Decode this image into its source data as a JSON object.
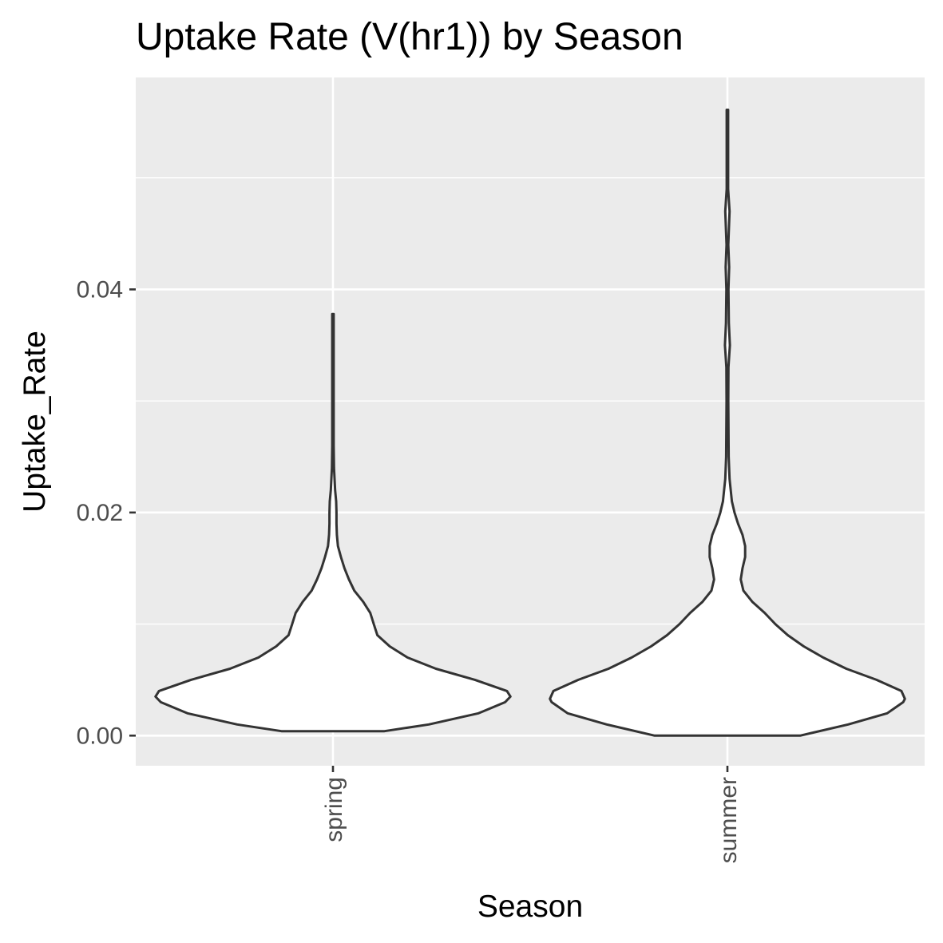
{
  "chart_data": {
    "type": "violin",
    "title": "Uptake Rate (V(hr1)) by Season",
    "xlabel": "Season",
    "ylabel": "Uptake_Rate",
    "categories": [
      "spring",
      "summer"
    ],
    "ylim": [
      -0.0027,
      0.059
    ],
    "y_ticks": [
      0.0,
      0.02,
      0.04
    ],
    "y_tick_labels": [
      "0.00",
      "0.02",
      "0.04"
    ],
    "grid": true,
    "colors": {
      "panel": "#ebebeb",
      "grid": "#ffffff",
      "outline": "#333333",
      "fill": "#ffffff"
    },
    "series": [
      {
        "category": "spring",
        "min": 0.0004,
        "max": 0.0378,
        "profile": [
          [
            0.0004,
            0.29
          ],
          [
            0.001,
            0.54
          ],
          [
            0.002,
            0.82
          ],
          [
            0.003,
            0.97
          ],
          [
            0.0035,
            1.0
          ],
          [
            0.004,
            0.98
          ],
          [
            0.005,
            0.8
          ],
          [
            0.006,
            0.58
          ],
          [
            0.007,
            0.42
          ],
          [
            0.008,
            0.32
          ],
          [
            0.009,
            0.25
          ],
          [
            0.01,
            0.23
          ],
          [
            0.011,
            0.21
          ],
          [
            0.012,
            0.17
          ],
          [
            0.013,
            0.12
          ],
          [
            0.014,
            0.09
          ],
          [
            0.015,
            0.065
          ],
          [
            0.016,
            0.045
          ],
          [
            0.017,
            0.028
          ],
          [
            0.018,
            0.022
          ],
          [
            0.019,
            0.02
          ],
          [
            0.02,
            0.02
          ],
          [
            0.021,
            0.018
          ],
          [
            0.022,
            0.012
          ],
          [
            0.024,
            0.006
          ],
          [
            0.026,
            0.004
          ],
          [
            0.03,
            0.004
          ],
          [
            0.034,
            0.004
          ],
          [
            0.037,
            0.004
          ],
          [
            0.0378,
            0.004
          ]
        ]
      },
      {
        "category": "summer",
        "min": 0.0,
        "max": 0.0561,
        "profile": [
          [
            0.0,
            0.41
          ],
          [
            0.001,
            0.68
          ],
          [
            0.002,
            0.9
          ],
          [
            0.003,
            0.99
          ],
          [
            0.0033,
            1.0
          ],
          [
            0.004,
            0.98
          ],
          [
            0.005,
            0.84
          ],
          [
            0.006,
            0.67
          ],
          [
            0.007,
            0.54
          ],
          [
            0.008,
            0.43
          ],
          [
            0.009,
            0.34
          ],
          [
            0.01,
            0.27
          ],
          [
            0.011,
            0.21
          ],
          [
            0.012,
            0.14
          ],
          [
            0.013,
            0.09
          ],
          [
            0.014,
            0.075
          ],
          [
            0.015,
            0.085
          ],
          [
            0.016,
            0.1
          ],
          [
            0.017,
            0.1
          ],
          [
            0.018,
            0.085
          ],
          [
            0.019,
            0.06
          ],
          [
            0.02,
            0.04
          ],
          [
            0.021,
            0.025
          ],
          [
            0.023,
            0.012
          ],
          [
            0.025,
            0.007
          ],
          [
            0.03,
            0.005
          ],
          [
            0.033,
            0.006
          ],
          [
            0.035,
            0.014
          ],
          [
            0.037,
            0.008
          ],
          [
            0.04,
            0.006
          ],
          [
            0.042,
            0.01
          ],
          [
            0.044,
            0.005
          ],
          [
            0.047,
            0.012
          ],
          [
            0.049,
            0.004
          ],
          [
            0.053,
            0.004
          ],
          [
            0.0561,
            0.004
          ]
        ]
      }
    ]
  }
}
